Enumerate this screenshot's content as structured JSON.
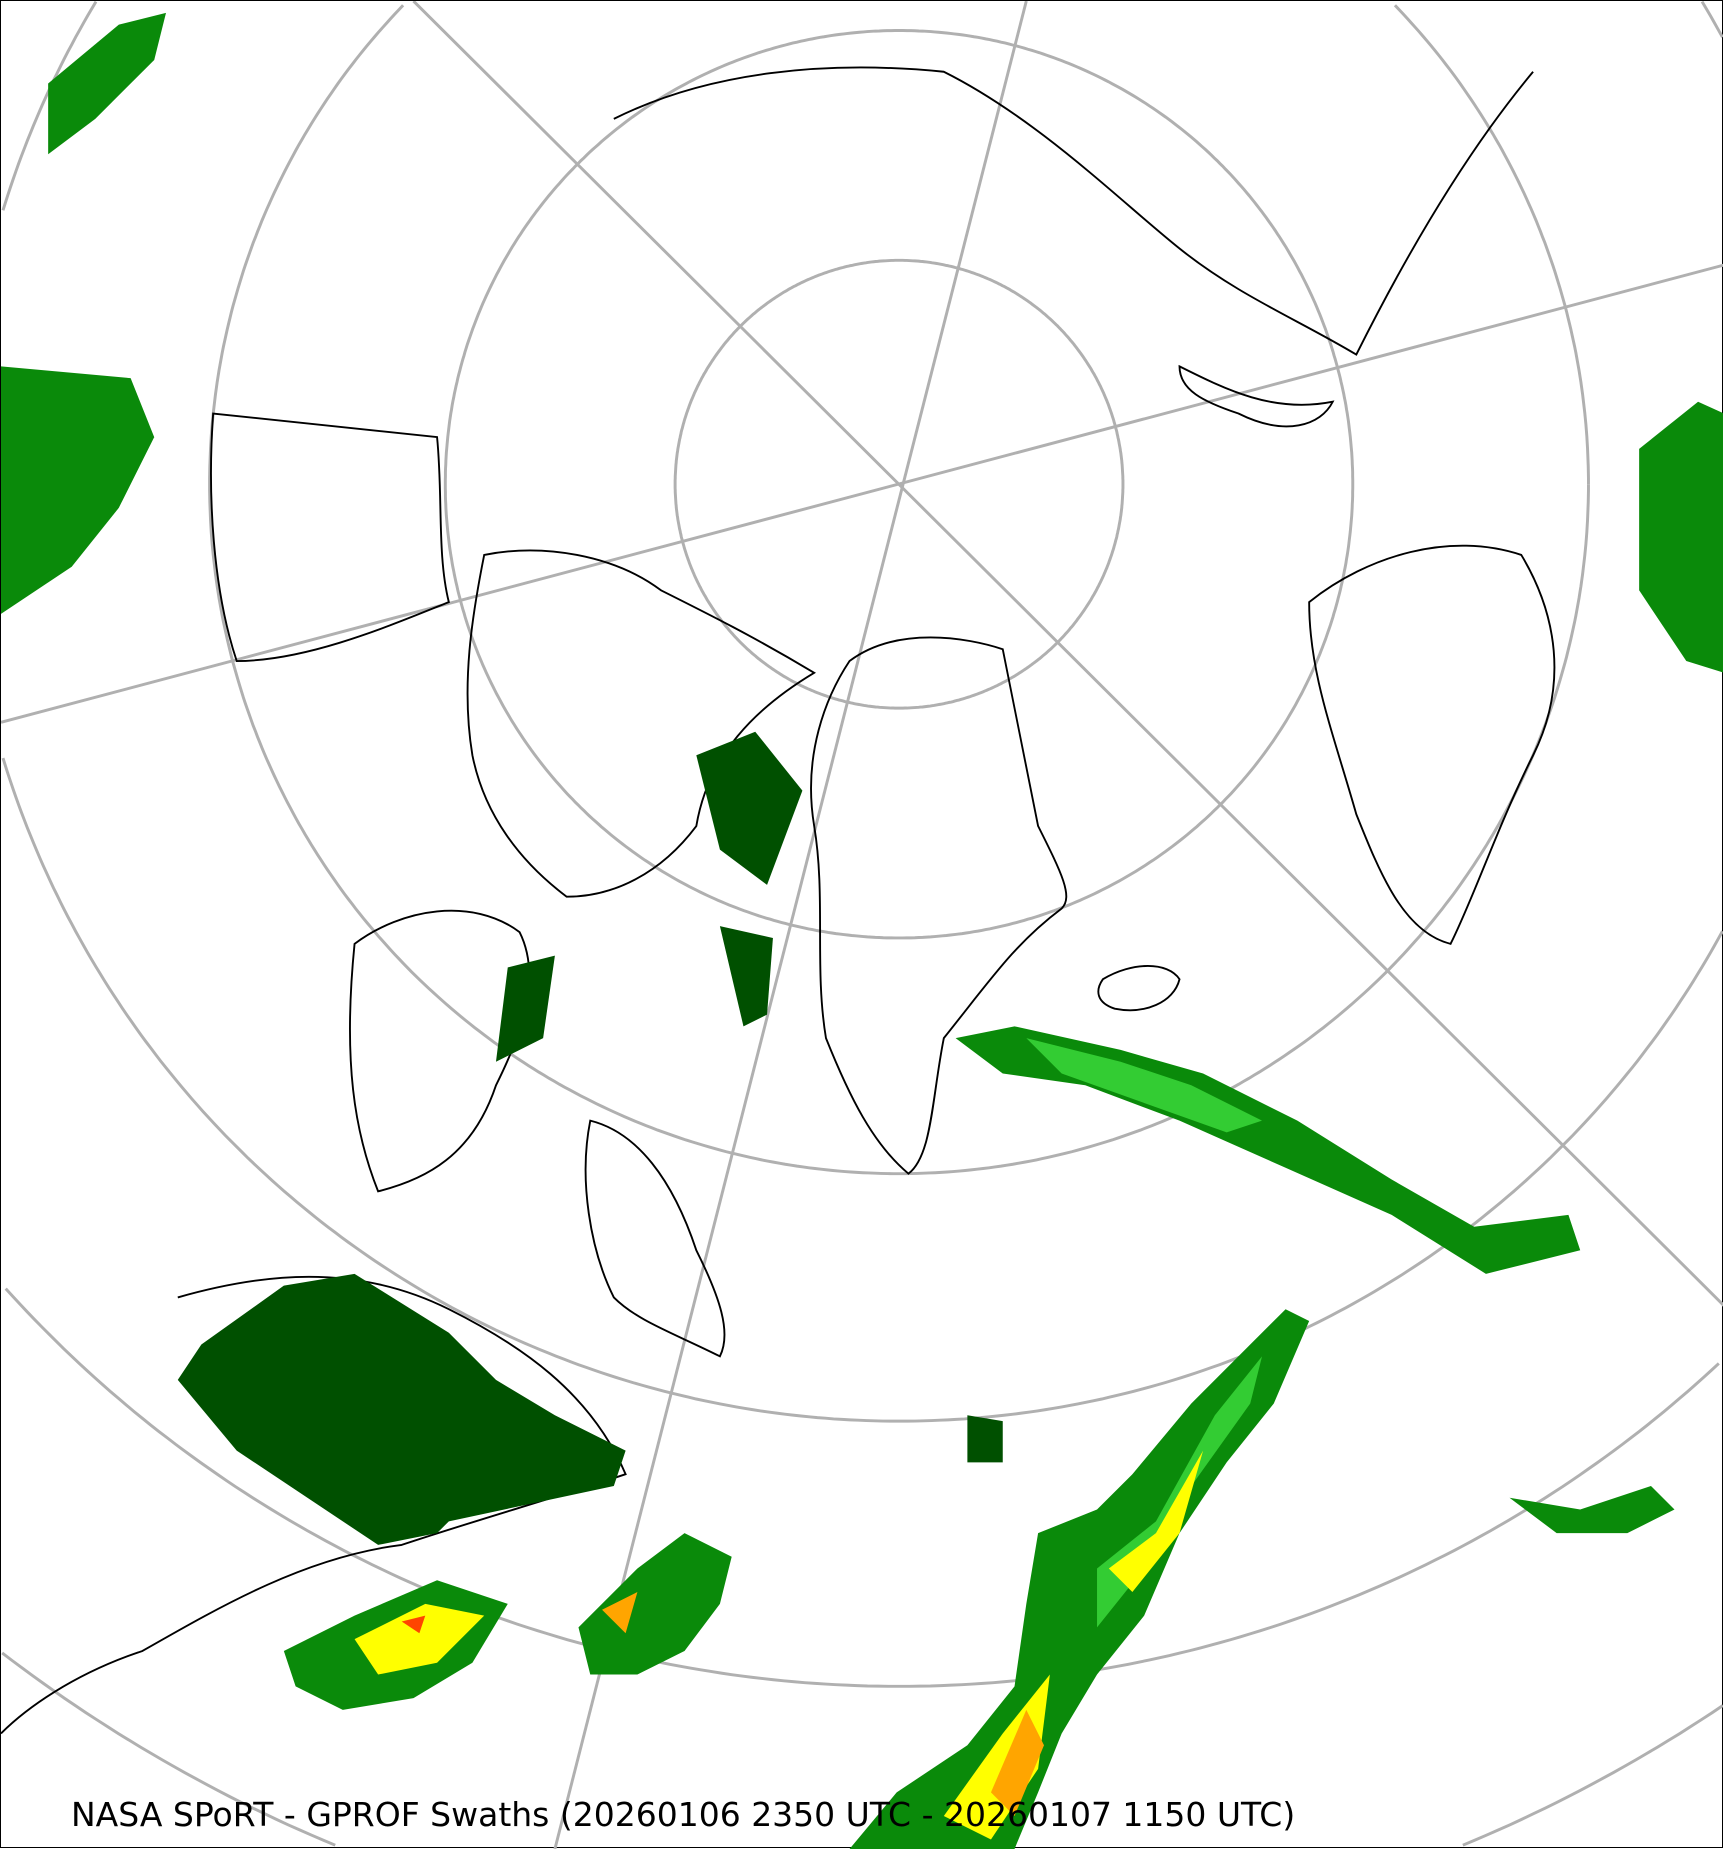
{
  "caption": "NASA SPoRT - GPROF Swaths (20260106 2350 UTC - 20260107 1150 UTC)",
  "map": {
    "projection": "north-polar-stereographic",
    "colors": {
      "graticule": "#b0b0b0",
      "coastline": "#000000",
      "precip_light": "#005000",
      "precip_moderate": "#0a8a0a",
      "precip_heavier": "#33cc33",
      "precip_high": "#ffff00",
      "precip_very_high": "#ffa500",
      "precip_extreme": "#ff4500"
    }
  }
}
